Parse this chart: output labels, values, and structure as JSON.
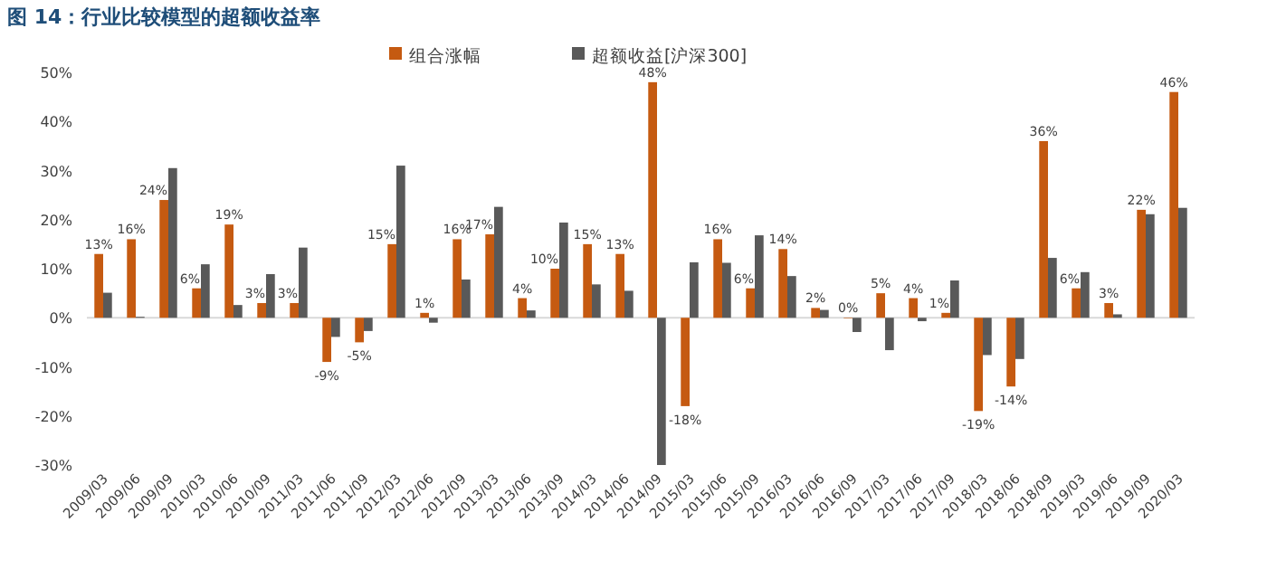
{
  "chart_data": {
    "type": "bar",
    "title": "图 14：行业比较模型的超额收益率",
    "categories": [
      "2009/03",
      "2009/06",
      "2009/09",
      "2010/03",
      "2010/06",
      "2010/09",
      "2011/03",
      "2011/06",
      "2011/09",
      "2012/03",
      "2012/06",
      "2012/09",
      "2013/03",
      "2013/06",
      "2013/09",
      "2014/03",
      "2014/06",
      "2014/09",
      "2015/03",
      "2015/06",
      "2015/09",
      "2016/03",
      "2016/06",
      "2016/09",
      "2017/03",
      "2017/06",
      "2017/09",
      "2018/03",
      "2018/06",
      "2018/09",
      "2019/03",
      "2019/06",
      "2019/09",
      "2020/03"
    ],
    "series": [
      {
        "name": "组合涨幅",
        "color": "#c55a11",
        "data_labels": true,
        "value_labels": [
          "13%",
          "16%",
          "24%",
          "6%",
          "19%",
          "3%",
          "3%",
          "-9%",
          "-5%",
          "15%",
          "1%",
          "16%",
          "17%",
          "4%",
          "10%",
          "15%",
          "13%",
          "48%",
          "-18%",
          "16%",
          "6%",
          "14%",
          "2%",
          "0%",
          "5%",
          "4%",
          "1%",
          "-19%",
          "-14%",
          "36%",
          "6%",
          "3%",
          "22%",
          "46%"
        ],
        "values": [
          13,
          16,
          24,
          6,
          19,
          3,
          3,
          -9,
          -5,
          15,
          1,
          16,
          17,
          4,
          10,
          15,
          13,
          48,
          -18,
          16,
          6,
          14,
          2,
          0,
          5,
          4,
          1,
          -19,
          -14,
          36,
          6,
          3,
          22,
          46
        ]
      },
      {
        "name": "超额收益[沪深300]",
        "color": "#595959",
        "values": [
          5.1,
          0.2,
          30.5,
          10.9,
          2.6,
          8.9,
          14.3,
          -3.9,
          -2.7,
          31,
          -1.0,
          7.8,
          22.6,
          1.5,
          19.4,
          6.8,
          5.5,
          -30,
          11.3,
          11.2,
          16.8,
          8.5,
          1.6,
          -2.9,
          -6.6,
          -0.7,
          7.6,
          -7.6,
          -8.4,
          12.2,
          9.3,
          0.7,
          21.1,
          22.4
        ]
      }
    ],
    "ylim": [
      -30,
      50
    ],
    "yticks": [
      {
        "value": -30,
        "label": "-30%"
      },
      {
        "value": -20,
        "label": "-20%"
      },
      {
        "value": -10,
        "label": "-10%"
      },
      {
        "value": 0,
        "label": "0%"
      },
      {
        "value": 10,
        "label": "10%"
      },
      {
        "value": 20,
        "label": "20%"
      },
      {
        "value": 30,
        "label": "30%"
      },
      {
        "value": 40,
        "label": "40%"
      },
      {
        "value": 50,
        "label": "50%"
      }
    ],
    "legend": "top"
  }
}
